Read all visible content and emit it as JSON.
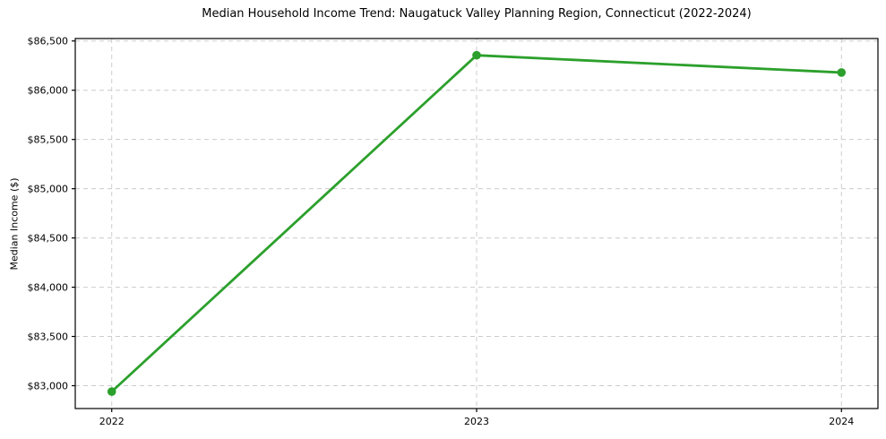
{
  "chart_data": {
    "type": "line",
    "title": "Median Household Income Trend: Naugatuck Valley Planning Region, Connecticut (2022-2024)",
    "ylabel": "Median Income ($)",
    "xlabel": "",
    "categories": [
      "2022",
      "2023",
      "2024"
    ],
    "series": [
      {
        "name": "Median Household Income",
        "values": [
          82940,
          86355,
          86180
        ]
      }
    ],
    "yticks": [
      83000,
      83500,
      84000,
      84500,
      85000,
      85500,
      86000,
      86500
    ],
    "ytick_labels": [
      "$83,000",
      "$83,500",
      "$84,000",
      "$84,500",
      "$85,000",
      "$85,500",
      "$86,000",
      "$86,500"
    ],
    "ylim": [
      82768,
      86525
    ],
    "xlim": [
      -0.1,
      2.1
    ],
    "grid": true,
    "grid_style": "dashed",
    "legend_position": "none",
    "line_color": "#2ca02c",
    "marker": "circle",
    "marker_radius": 4.8,
    "grid_color": "#cccccc",
    "spine_color": "#000000",
    "background_color": "#ffffff"
  }
}
